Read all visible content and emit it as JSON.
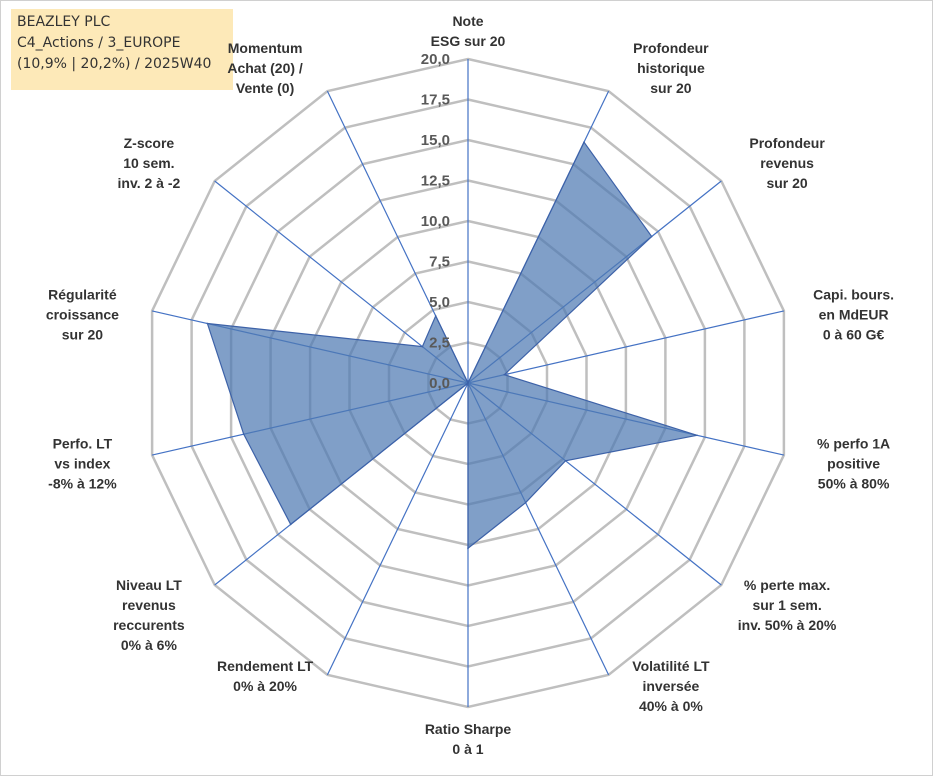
{
  "info": {
    "line1": "BEAZLEY PLC",
    "line2": "C4_Actions / 3_EUROPE",
    "line3": "(10,9% | 20,2%) / 2025W40"
  },
  "chart_data": {
    "type": "radar",
    "title": "",
    "r_range": [
      0,
      20
    ],
    "tick_values": [
      0,
      2.5,
      5,
      7.5,
      10,
      12.5,
      15,
      17.5,
      20
    ],
    "tick_labels": [
      "0,0",
      "2,5",
      "5,0",
      "7,5",
      "10,0",
      "12,5",
      "15,0",
      "17,5",
      "20,0"
    ],
    "categories": [
      [
        "Note",
        "ESG sur 20"
      ],
      [
        "Profondeur",
        "historique",
        "sur 20"
      ],
      [
        "Profondeur",
        "revenus",
        "sur 20"
      ],
      [
        "Capi. bours.",
        "en MdEUR",
        "0 à 60 G€"
      ],
      [
        "% perfo 1A",
        "positive",
        "50% à 80%"
      ],
      [
        "% perte max.",
        "sur 1 sem.",
        "inv. 50% à 20%"
      ],
      [
        "Volatilité LT",
        "inversée",
        "40% à 0%"
      ],
      [
        "Ratio Sharpe",
        "0 à 1"
      ],
      [
        "Rendement LT",
        "0% à 20%"
      ],
      [
        "Niveau LT",
        "revenus",
        "reccurents",
        "0% à 6%"
      ],
      [
        "Perfo. LT",
        "vs index",
        "-8% à 12%"
      ],
      [
        "Régularité",
        "croissance",
        "sur 20"
      ],
      [
        "Z-score",
        "10 sem.",
        "inv. 2 à -2"
      ],
      [
        "Momentum",
        "Achat (20) /",
        "Vente (0)"
      ]
    ],
    "series": [
      {
        "name": "BEAZLEY PLC",
        "color": "#4f7ab3",
        "values": [
          0,
          16.5,
          14.5,
          2.3,
          14.5,
          7.7,
          8.2,
          10.2,
          0,
          14.0,
          14.2,
          16.5,
          3.6,
          4.6
        ]
      }
    ]
  }
}
